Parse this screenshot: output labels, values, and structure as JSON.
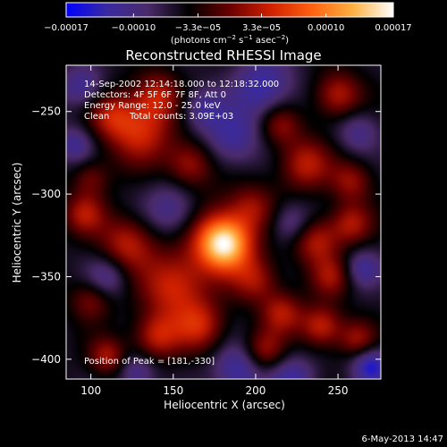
{
  "chart_data": {
    "type": "heatmap",
    "title": "Reconstructed RHESSI Image",
    "xlabel": "Heliocentric X (arcsec)",
    "ylabel": "Heliocentric Y (arcsec)",
    "xlim": [
      85,
      276
    ],
    "ylim": [
      -412,
      -222
    ],
    "x_ticks": [
      100,
      150,
      200,
      250
    ],
    "y_ticks": [
      -250,
      -300,
      -350,
      -400
    ],
    "x_tick_labels": [
      "100",
      "150",
      "200",
      "250"
    ],
    "y_tick_labels": [
      "−250",
      "−300",
      "−350",
      "−400"
    ],
    "colorbar": {
      "range": [
        -0.00017,
        0.00017
      ],
      "ticks": [
        -0.00017,
        -0.0001,
        -3.3e-05,
        3.3e-05,
        0.0001,
        0.00017
      ],
      "tick_labels": [
        "−0.00017",
        "−0.00010",
        "−3.3e−05",
        "3.3e−05",
        "0.00010",
        "0.00017"
      ],
      "units_prefix": "(photons cm",
      "units_exp1": "−2",
      "units_mid": " s",
      "units_exp2": "−1",
      "units_mid2": " asec",
      "units_exp3": "−2",
      "units_suffix": ")",
      "colors": [
        "#0000ff",
        "#3a2aa0",
        "#4a2a6a",
        "#000000",
        "#6a0000",
        "#d02000",
        "#ff6010",
        "#ffb040",
        "#ffffff"
      ]
    },
    "info": {
      "line1": "14-Sep-2002 12:14:18.000 to 12:18:32.000",
      "line2": "Detectors: 4F 5F 6F 7F 8F, Att 0",
      "line3": "Energy Range: 12.0 - 25.0 keV",
      "line4a": "Clean",
      "line4b": "Total counts: 3.09E+03"
    },
    "peak_label": "Position of Peak = [181,-330]",
    "peak": [
      181,
      -330
    ],
    "peak_value": 0.00017,
    "timestamp": "6-May-2013 14:47",
    "blobs": [
      {
        "x": 181,
        "y": -330,
        "v": 1.0,
        "s": 11
      },
      {
        "x": 176,
        "y": -326,
        "v": 0.35,
        "s": 18
      },
      {
        "x": 130,
        "y": -262,
        "v": 0.55,
        "s": 14
      },
      {
        "x": 112,
        "y": -252,
        "v": 0.4,
        "s": 10
      },
      {
        "x": 140,
        "y": -240,
        "v": 0.45,
        "s": 10
      },
      {
        "x": 160,
        "y": -282,
        "v": 0.45,
        "s": 10
      },
      {
        "x": 122,
        "y": -330,
        "v": 0.5,
        "s": 12
      },
      {
        "x": 96,
        "y": -312,
        "v": 0.45,
        "s": 9
      },
      {
        "x": 100,
        "y": -290,
        "v": 0.3,
        "s": 8
      },
      {
        "x": 150,
        "y": -356,
        "v": 0.55,
        "s": 14
      },
      {
        "x": 166,
        "y": -380,
        "v": 0.5,
        "s": 11
      },
      {
        "x": 140,
        "y": -386,
        "v": 0.5,
        "s": 10
      },
      {
        "x": 110,
        "y": -398,
        "v": 0.45,
        "s": 8
      },
      {
        "x": 100,
        "y": -364,
        "v": 0.35,
        "s": 9
      },
      {
        "x": 200,
        "y": -352,
        "v": 0.4,
        "s": 10
      },
      {
        "x": 216,
        "y": -372,
        "v": 0.45,
        "s": 9
      },
      {
        "x": 205,
        "y": -395,
        "v": 0.45,
        "s": 9
      },
      {
        "x": 236,
        "y": -328,
        "v": 0.5,
        "s": 10
      },
      {
        "x": 258,
        "y": -318,
        "v": 0.45,
        "s": 9
      },
      {
        "x": 246,
        "y": -350,
        "v": 0.4,
        "s": 9
      },
      {
        "x": 240,
        "y": -380,
        "v": 0.55,
        "s": 9
      },
      {
        "x": 262,
        "y": -388,
        "v": 0.4,
        "s": 8
      },
      {
        "x": 230,
        "y": -282,
        "v": 0.5,
        "s": 11
      },
      {
        "x": 258,
        "y": -292,
        "v": 0.4,
        "s": 9
      },
      {
        "x": 215,
        "y": -258,
        "v": 0.4,
        "s": 9
      },
      {
        "x": 250,
        "y": -240,
        "v": 0.5,
        "s": 10
      },
      {
        "x": 198,
        "y": -308,
        "v": 0.35,
        "s": 10
      },
      {
        "x": 186,
        "y": -266,
        "v": -0.4,
        "s": 12
      },
      {
        "x": 205,
        "y": -235,
        "v": -0.45,
        "s": 13
      },
      {
        "x": 168,
        "y": -248,
        "v": -0.35,
        "s": 9
      },
      {
        "x": 95,
        "y": -235,
        "v": -0.4,
        "s": 9
      },
      {
        "x": 90,
        "y": -270,
        "v": -0.35,
        "s": 8
      },
      {
        "x": 150,
        "y": -310,
        "v": -0.4,
        "s": 12
      },
      {
        "x": 110,
        "y": -350,
        "v": -0.35,
        "s": 9
      },
      {
        "x": 190,
        "y": -406,
        "v": -0.45,
        "s": 11
      },
      {
        "x": 222,
        "y": -412,
        "v": -0.4,
        "s": 10
      },
      {
        "x": 270,
        "y": -404,
        "v": -0.55,
        "s": 8
      },
      {
        "x": 222,
        "y": -318,
        "v": -0.35,
        "s": 9
      },
      {
        "x": 262,
        "y": -262,
        "v": -0.3,
        "s": 9
      },
      {
        "x": 128,
        "y": -408,
        "v": -0.35,
        "s": 8
      },
      {
        "x": 265,
        "y": -345,
        "v": -0.35,
        "s": 8
      }
    ]
  }
}
